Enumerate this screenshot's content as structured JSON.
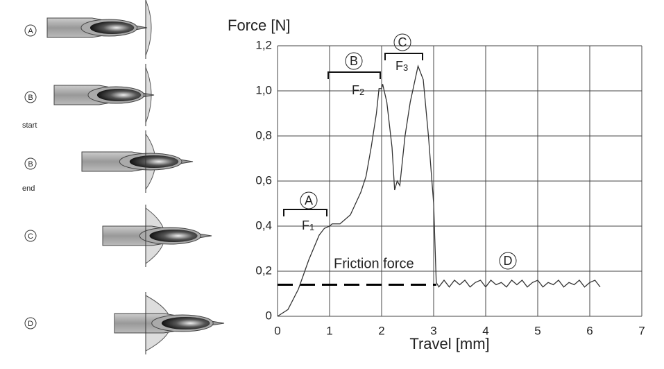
{
  "chart_data": {
    "type": "line",
    "ylabel": "Force [N]",
    "xlabel": "Travel [mm]",
    "xlim": [
      0,
      7
    ],
    "ylim": [
      0,
      1.2
    ],
    "xticks": [
      0,
      1,
      2,
      3,
      4,
      5,
      6,
      7
    ],
    "yticks": [
      0,
      {
        "value": 0.2,
        "label": "0,2"
      },
      {
        "value": 0.4,
        "label": "0,4"
      },
      {
        "value": 0.6,
        "label": "0,6"
      },
      {
        "value": 0.8,
        "label": "0,8"
      },
      {
        "value": 1.0,
        "label": "1,0"
      },
      {
        "value": 1.2,
        "label": "1,2"
      }
    ],
    "grid": true,
    "series": [
      {
        "color": "#333333",
        "x": [
          0,
          0.2,
          0.4,
          0.6,
          0.8,
          0.9,
          1.0,
          1.05,
          1.1,
          1.2,
          1.4,
          1.5,
          1.6,
          1.7,
          1.8,
          1.9,
          1.95,
          2.0,
          2.02,
          2.1,
          2.2,
          2.25,
          2.3,
          2.35,
          2.45,
          2.55,
          2.7,
          2.8,
          2.9,
          3.0,
          3.05,
          3.1,
          3.2,
          3.3,
          3.4,
          3.5,
          3.6,
          3.7,
          3.8,
          3.9,
          4.0,
          4.1,
          4.2,
          4.3,
          4.4,
          4.5,
          4.6,
          4.7,
          4.8,
          4.9,
          5.0,
          5.1,
          5.2,
          5.3,
          5.4,
          5.5,
          5.6,
          5.7,
          5.8,
          5.9,
          6.0,
          6.1,
          6.2
        ],
        "values": [
          0,
          0.03,
          0.12,
          0.25,
          0.36,
          0.39,
          0.4,
          0.41,
          0.41,
          0.41,
          0.45,
          0.5,
          0.55,
          0.62,
          0.75,
          0.9,
          1.01,
          1.01,
          1.03,
          0.95,
          0.75,
          0.56,
          0.6,
          0.58,
          0.8,
          0.95,
          1.11,
          1.05,
          0.8,
          0.5,
          0.15,
          0.13,
          0.16,
          0.13,
          0.16,
          0.14,
          0.16,
          0.13,
          0.15,
          0.16,
          0.13,
          0.16,
          0.14,
          0.15,
          0.13,
          0.16,
          0.14,
          0.16,
          0.13,
          0.15,
          0.16,
          0.13,
          0.15,
          0.14,
          0.16,
          0.13,
          0.15,
          0.14,
          0.16,
          0.13,
          0.15,
          0.16,
          0.13
        ]
      }
    ],
    "friction_force": {
      "label": "Friction force",
      "value": 0.14
    },
    "annotations": [
      {
        "letter": "A",
        "force": "F",
        "index": "1"
      },
      {
        "letter": "B",
        "force": "F",
        "index": "2"
      },
      {
        "letter": "C",
        "force": "F",
        "index": "3"
      },
      {
        "letter": "D"
      }
    ]
  },
  "diagrams": [
    {
      "label": "A"
    },
    {
      "label": "B",
      "note": "start"
    },
    {
      "label": "B",
      "note": "end"
    },
    {
      "label": "C"
    },
    {
      "label": "D"
    }
  ]
}
